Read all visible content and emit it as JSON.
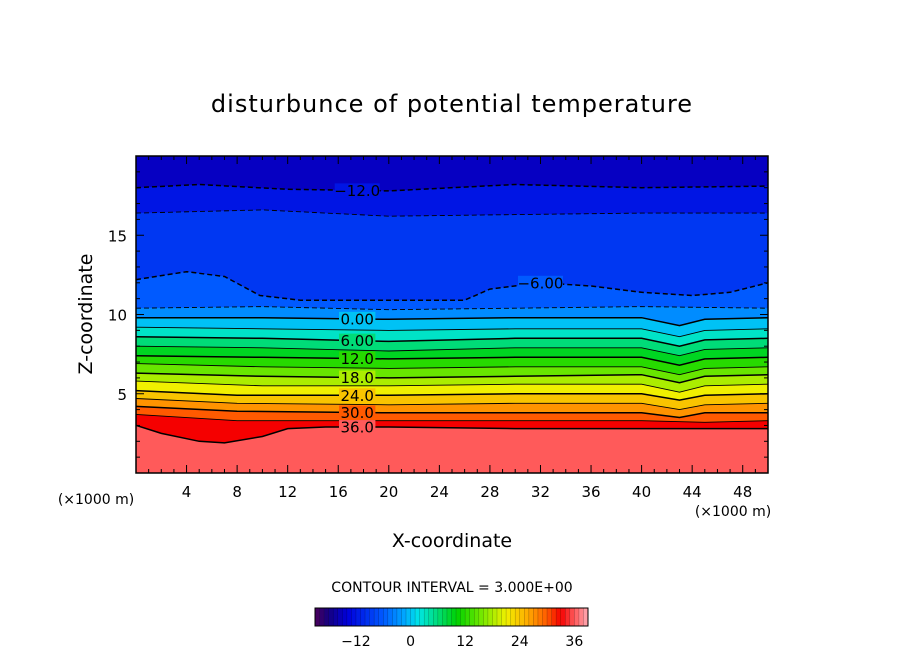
{
  "chart_data": {
    "type": "contour",
    "title": "disturbunce of potential temperature",
    "xlabel": "X-coordinate",
    "ylabel": "Z-coordinate",
    "x_unit_left": "(×1000 m)",
    "x_unit_right": "(×1000 m)",
    "xlim": [
      0,
      50
    ],
    "ylim": [
      0,
      20
    ],
    "x_ticks": [
      4,
      8,
      12,
      16,
      20,
      24,
      28,
      32,
      36,
      40,
      44,
      48
    ],
    "y_ticks": [
      5,
      10,
      15
    ],
    "contour_interval_text": "CONTOUR INTERVAL = 3.000E+00",
    "colorbar": {
      "min": -21,
      "max": 39,
      "ticks": [
        -12,
        0,
        12,
        24,
        36
      ]
    },
    "contours": [
      {
        "value": -12,
        "label": "-12.0",
        "dashed": true,
        "points": [
          [
            0,
            18.0
          ],
          [
            5,
            18.2
          ],
          [
            12,
            17.9
          ],
          [
            20,
            17.8
          ],
          [
            30,
            18.2
          ],
          [
            40,
            18.0
          ],
          [
            50,
            18.1
          ]
        ]
      },
      {
        "value": -9,
        "label": "",
        "dashed": true,
        "points": [
          [
            0,
            16.4
          ],
          [
            10,
            16.6
          ],
          [
            20,
            16.2
          ],
          [
            30,
            16.3
          ],
          [
            40,
            16.4
          ],
          [
            50,
            16.4
          ]
        ]
      },
      {
        "value": -6,
        "label": "-6.00",
        "dashed": true,
        "points": [
          [
            0,
            12.2
          ],
          [
            4,
            12.7
          ],
          [
            7,
            12.4
          ],
          [
            9.8,
            11.2
          ],
          [
            13,
            10.9
          ],
          [
            26,
            10.9
          ],
          [
            28,
            11.6
          ],
          [
            32,
            12.0
          ],
          [
            36,
            11.8
          ],
          [
            40,
            11.4
          ],
          [
            44,
            11.2
          ],
          [
            47,
            11.4
          ],
          [
            50,
            12.0
          ]
        ]
      },
      {
        "value": -3,
        "label": "",
        "dashed": true,
        "points": [
          [
            0,
            10.4
          ],
          [
            10,
            10.5
          ],
          [
            20,
            10.3
          ],
          [
            30,
            10.4
          ],
          [
            40,
            10.5
          ],
          [
            50,
            10.4
          ]
        ]
      },
      {
        "value": 0,
        "label": "0.00",
        "dashed": false,
        "points": [
          [
            0,
            9.8
          ],
          [
            10,
            9.8
          ],
          [
            20,
            9.7
          ],
          [
            30,
            9.8
          ],
          [
            40,
            9.8
          ],
          [
            43,
            9.3
          ],
          [
            45,
            9.7
          ],
          [
            50,
            9.8
          ]
        ]
      },
      {
        "value": 3,
        "label": "",
        "dashed": false,
        "points": [
          [
            0,
            9.2
          ],
          [
            10,
            9.1
          ],
          [
            20,
            9.0
          ],
          [
            30,
            9.1
          ],
          [
            40,
            9.1
          ],
          [
            43,
            8.6
          ],
          [
            45,
            9.0
          ],
          [
            50,
            9.1
          ]
        ]
      },
      {
        "value": 6,
        "label": "6.00",
        "dashed": false,
        "points": [
          [
            0,
            8.6
          ],
          [
            10,
            8.5
          ],
          [
            20,
            8.3
          ],
          [
            30,
            8.5
          ],
          [
            40,
            8.5
          ],
          [
            43,
            8.0
          ],
          [
            45,
            8.4
          ],
          [
            50,
            8.5
          ]
        ]
      },
      {
        "value": 9,
        "label": "",
        "dashed": false,
        "points": [
          [
            0,
            8.0
          ],
          [
            10,
            7.9
          ],
          [
            20,
            7.7
          ],
          [
            30,
            7.9
          ],
          [
            40,
            7.9
          ],
          [
            43,
            7.4
          ],
          [
            45,
            7.8
          ],
          [
            50,
            7.9
          ]
        ]
      },
      {
        "value": 12,
        "label": "12.0",
        "dashed": false,
        "points": [
          [
            0,
            7.4
          ],
          [
            10,
            7.3
          ],
          [
            20,
            7.2
          ],
          [
            30,
            7.3
          ],
          [
            40,
            7.3
          ],
          [
            43,
            6.8
          ],
          [
            45,
            7.2
          ],
          [
            50,
            7.3
          ]
        ]
      },
      {
        "value": 15,
        "label": "",
        "dashed": false,
        "points": [
          [
            0,
            6.9
          ],
          [
            10,
            6.7
          ],
          [
            20,
            6.6
          ],
          [
            30,
            6.7
          ],
          [
            40,
            6.7
          ],
          [
            43,
            6.2
          ],
          [
            45,
            6.6
          ],
          [
            50,
            6.7
          ]
        ]
      },
      {
        "value": 18,
        "label": "18.0",
        "dashed": false,
        "points": [
          [
            0,
            6.3
          ],
          [
            10,
            6.1
          ],
          [
            20,
            6.0
          ],
          [
            30,
            6.1
          ],
          [
            40,
            6.2
          ],
          [
            43,
            5.7
          ],
          [
            45,
            6.1
          ],
          [
            50,
            6.2
          ]
        ]
      },
      {
        "value": 21,
        "label": "",
        "dashed": false,
        "points": [
          [
            0,
            5.8
          ],
          [
            10,
            5.5
          ],
          [
            20,
            5.5
          ],
          [
            30,
            5.6
          ],
          [
            40,
            5.6
          ],
          [
            43,
            5.1
          ],
          [
            45,
            5.5
          ],
          [
            50,
            5.6
          ]
        ]
      },
      {
        "value": 24,
        "label": "24.0",
        "dashed": false,
        "points": [
          [
            0,
            5.2
          ],
          [
            8,
            4.9
          ],
          [
            20,
            4.9
          ],
          [
            30,
            5.0
          ],
          [
            40,
            5.0
          ],
          [
            43,
            4.6
          ],
          [
            45,
            4.9
          ],
          [
            50,
            5.0
          ]
        ]
      },
      {
        "value": 27,
        "label": "",
        "dashed": false,
        "points": [
          [
            0,
            4.7
          ],
          [
            8,
            4.4
          ],
          [
            20,
            4.3
          ],
          [
            30,
            4.4
          ],
          [
            40,
            4.4
          ],
          [
            43,
            4.0
          ],
          [
            45,
            4.3
          ],
          [
            50,
            4.4
          ]
        ]
      },
      {
        "value": 30,
        "label": "30.0",
        "dashed": false,
        "points": [
          [
            0,
            4.2
          ],
          [
            8,
            3.9
          ],
          [
            20,
            3.8
          ],
          [
            30,
            3.8
          ],
          [
            40,
            3.8
          ],
          [
            43,
            3.5
          ],
          [
            45,
            3.8
          ],
          [
            50,
            3.8
          ]
        ]
      },
      {
        "value": 33,
        "label": "",
        "dashed": false,
        "points": [
          [
            0,
            3.7
          ],
          [
            8,
            3.3
          ],
          [
            20,
            3.3
          ],
          [
            30,
            3.3
          ],
          [
            40,
            3.3
          ],
          [
            45,
            3.2
          ],
          [
            50,
            3.3
          ]
        ]
      },
      {
        "value": 36,
        "label": "36.0",
        "dashed": false,
        "points": [
          [
            0,
            3.0
          ],
          [
            2,
            2.5
          ],
          [
            5,
            2.0
          ],
          [
            7,
            1.9
          ],
          [
            10,
            2.3
          ],
          [
            12,
            2.8
          ],
          [
            15,
            2.9
          ],
          [
            20,
            2.9
          ],
          [
            30,
            2.8
          ],
          [
            40,
            2.8
          ],
          [
            50,
            2.8
          ]
        ]
      }
    ]
  }
}
